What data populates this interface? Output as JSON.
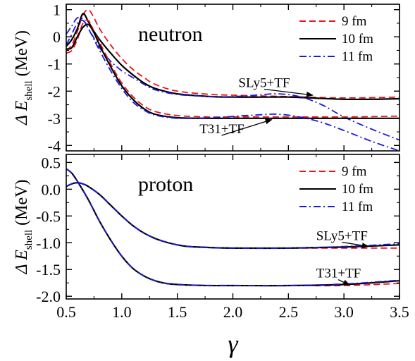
{
  "chart_data": [
    {
      "type": "line",
      "panel_label": "neutron",
      "xlim": [
        0.5,
        3.5
      ],
      "ylim": [
        -4.2,
        1.2
      ],
      "yticks": [
        1,
        0,
        -1,
        -2,
        -3,
        -4
      ],
      "ytick_labels": [
        "1",
        "0",
        "-1",
        "-2",
        "-3",
        "-4"
      ],
      "ylabel": "Δ E",
      "ylabel_sub": "shell",
      "ylabel_unit": "(MeV)",
      "legend": {
        "position": "top-right",
        "entries": [
          {
            "label": "9 fm",
            "color": "#e8141c",
            "dash": "dashed"
          },
          {
            "label": "10 fm",
            "color": "#000000",
            "dash": "solid"
          },
          {
            "label": "11 fm",
            "color": "#1a1adc",
            "dash": "dashdot"
          }
        ]
      },
      "annotations": [
        {
          "text": "SLy5+TF",
          "x": 2.05,
          "y": -1.85,
          "arrow_to_x": 2.72,
          "arrow_to_y": -2.15
        },
        {
          "text": "T31+TF",
          "x": 1.7,
          "y": -3.55,
          "arrow_to_x": 2.35,
          "arrow_to_y": -3.05
        }
      ],
      "series": [
        {
          "name": "9 fm",
          "group": "SLy5+TF",
          "color": "#e8141c",
          "dash": "dashed",
          "x": [
            0.5,
            0.55,
            0.6,
            0.65,
            0.7,
            0.75,
            0.8,
            0.9,
            1.0,
            1.1,
            1.2,
            1.3,
            1.5,
            1.8,
            2.0,
            2.5,
            3.0,
            3.5
          ],
          "y": [
            -0.5,
            -0.3,
            0.2,
            0.8,
            1.0,
            0.7,
            0.3,
            -0.3,
            -0.8,
            -1.2,
            -1.5,
            -1.75,
            -2.0,
            -2.12,
            -2.15,
            -2.2,
            -2.25,
            -2.22
          ]
        },
        {
          "name": "10 fm",
          "group": "SLy5+TF",
          "color": "#000000",
          "dash": "solid",
          "x": [
            0.5,
            0.55,
            0.6,
            0.65,
            0.7,
            0.75,
            0.8,
            0.9,
            1.0,
            1.1,
            1.2,
            1.3,
            1.5,
            1.8,
            2.0,
            2.3,
            2.5,
            2.7,
            3.0,
            3.25,
            3.5
          ],
          "y": [
            -0.35,
            -0.1,
            0.3,
            0.85,
            0.55,
            0.2,
            -0.1,
            -0.6,
            -1.05,
            -1.4,
            -1.7,
            -1.9,
            -2.1,
            -2.2,
            -2.22,
            -2.22,
            -2.22,
            -2.25,
            -2.3,
            -2.3,
            -2.28
          ]
        },
        {
          "name": "11 fm",
          "group": "SLy5+TF",
          "color": "#1a1adc",
          "dash": "dashdot",
          "x": [
            0.5,
            0.55,
            0.6,
            0.65,
            0.7,
            0.75,
            0.8,
            0.9,
            1.0,
            1.1,
            1.2,
            1.3,
            1.5,
            1.8,
            2.0,
            2.2,
            2.4,
            2.6,
            2.8,
            3.0,
            3.25,
            3.5
          ],
          "y": [
            0.1,
            0.4,
            0.7,
            0.65,
            0.3,
            -0.05,
            -0.4,
            -0.9,
            -1.25,
            -1.5,
            -1.75,
            -1.95,
            -2.12,
            -2.2,
            -2.2,
            -2.15,
            -2.1,
            -2.2,
            -2.5,
            -2.95,
            -3.4,
            -3.8
          ]
        },
        {
          "name": "9 fm",
          "group": "T31+TF",
          "color": "#e8141c",
          "dash": "dashed",
          "x": [
            0.5,
            0.55,
            0.6,
            0.65,
            0.7,
            0.75,
            0.8,
            0.9,
            1.0,
            1.1,
            1.2,
            1.3,
            1.5,
            1.8,
            2.0,
            2.5,
            3.0,
            3.5
          ],
          "y": [
            -0.6,
            -0.5,
            -0.1,
            0.5,
            0.6,
            0.2,
            -0.2,
            -1.0,
            -1.7,
            -2.2,
            -2.55,
            -2.75,
            -2.9,
            -2.95,
            -2.95,
            -2.95,
            -2.95,
            -2.92
          ]
        },
        {
          "name": "10 fm",
          "group": "T31+TF",
          "color": "#000000",
          "dash": "solid",
          "x": [
            0.5,
            0.55,
            0.6,
            0.65,
            0.7,
            0.75,
            0.8,
            0.9,
            1.0,
            1.1,
            1.2,
            1.3,
            1.5,
            1.8,
            2.0,
            2.5,
            3.0,
            3.5
          ],
          "y": [
            -0.45,
            -0.4,
            0.0,
            0.35,
            0.45,
            0.15,
            -0.3,
            -1.1,
            -1.8,
            -2.3,
            -2.65,
            -2.85,
            -2.98,
            -3.0,
            -3.0,
            -3.0,
            -3.0,
            -3.0
          ]
        },
        {
          "name": "11 fm",
          "group": "T31+TF",
          "color": "#1a1adc",
          "dash": "dashdot",
          "x": [
            0.5,
            0.55,
            0.6,
            0.65,
            0.7,
            0.75,
            0.8,
            0.9,
            1.0,
            1.1,
            1.2,
            1.3,
            1.5,
            1.8,
            2.0,
            2.2,
            2.4,
            2.6,
            2.8,
            3.0,
            3.25,
            3.5
          ],
          "y": [
            -0.3,
            0.1,
            0.5,
            0.6,
            0.3,
            -0.1,
            -0.5,
            -1.25,
            -1.9,
            -2.4,
            -2.7,
            -2.88,
            -3.0,
            -2.98,
            -2.93,
            -2.88,
            -2.85,
            -2.95,
            -3.15,
            -3.45,
            -3.85,
            -4.2
          ]
        }
      ]
    },
    {
      "type": "line",
      "panel_label": "proton",
      "xlim": [
        0.5,
        3.5
      ],
      "ylim": [
        -2.05,
        0.65
      ],
      "xticks": [
        0.5,
        1.0,
        1.5,
        2.0,
        2.5,
        3.0,
        3.5
      ],
      "xtick_labels": [
        "0.5",
        "1.0",
        "1.5",
        "2.0",
        "2.5",
        "3.0",
        "3.5"
      ],
      "yticks": [
        0.5,
        0.0,
        -0.5,
        -1.0,
        -1.5,
        -2.0
      ],
      "ytick_labels": [
        "0.5",
        "0.0",
        "-0.5",
        "-1.0",
        "-1.5",
        "-2.0"
      ],
      "xlabel": "γ",
      "ylabel": "Δ E",
      "ylabel_sub": "shell",
      "ylabel_unit": "(MeV)",
      "legend": {
        "position": "top-right",
        "entries": [
          {
            "label": "9 fm",
            "color": "#e8141c",
            "dash": "dashed"
          },
          {
            "label": "10 fm",
            "color": "#000000",
            "dash": "solid"
          },
          {
            "label": "11 fm",
            "color": "#1a1adc",
            "dash": "dashdot"
          }
        ]
      },
      "annotations": [
        {
          "text": "SLy5+TF",
          "x": 2.75,
          "y": -0.95,
          "arrow_to_x": 3.22,
          "arrow_to_y": -1.07
        },
        {
          "text": "T31+TF",
          "x": 2.75,
          "y": -1.65,
          "arrow_to_x": 3.05,
          "arrow_to_y": -1.79
        }
      ],
      "series": [
        {
          "name": "9 fm",
          "group": "SLy5+TF",
          "color": "#e8141c",
          "dash": "dashed",
          "x": [
            0.5,
            0.55,
            0.6,
            0.65,
            0.7,
            0.8,
            0.9,
            1.0,
            1.1,
            1.2,
            1.3,
            1.4,
            1.5,
            1.6,
            1.8,
            2.0,
            2.5,
            3.0,
            3.5
          ],
          "y": [
            0.05,
            0.1,
            0.12,
            0.1,
            0.05,
            -0.1,
            -0.3,
            -0.5,
            -0.68,
            -0.82,
            -0.92,
            -0.99,
            -1.04,
            -1.07,
            -1.09,
            -1.1,
            -1.1,
            -1.1,
            -1.1
          ]
        },
        {
          "name": "10 fm",
          "group": "SLy5+TF",
          "color": "#000000",
          "dash": "solid",
          "x": [
            0.5,
            0.55,
            0.6,
            0.65,
            0.7,
            0.8,
            0.9,
            1.0,
            1.1,
            1.2,
            1.3,
            1.4,
            1.5,
            1.6,
            1.8,
            2.0,
            2.5,
            3.0,
            3.5
          ],
          "y": [
            0.05,
            0.1,
            0.12,
            0.1,
            0.05,
            -0.1,
            -0.3,
            -0.5,
            -0.68,
            -0.82,
            -0.92,
            -0.99,
            -1.04,
            -1.07,
            -1.09,
            -1.1,
            -1.1,
            -1.08,
            -1.04
          ]
        },
        {
          "name": "11 fm",
          "group": "SLy5+TF",
          "color": "#1a1adc",
          "dash": "dashdot",
          "x": [
            0.5,
            0.55,
            0.6,
            0.65,
            0.7,
            0.8,
            0.9,
            1.0,
            1.1,
            1.2,
            1.3,
            1.4,
            1.5,
            1.6,
            1.8,
            2.0,
            2.5,
            3.0,
            3.5
          ],
          "y": [
            0.05,
            0.1,
            0.12,
            0.1,
            0.05,
            -0.1,
            -0.3,
            -0.5,
            -0.68,
            -0.82,
            -0.92,
            -0.99,
            -1.04,
            -1.07,
            -1.09,
            -1.1,
            -1.1,
            -1.07,
            -1.02
          ]
        },
        {
          "name": "9 fm",
          "group": "T31+TF",
          "color": "#e8141c",
          "dash": "dashed",
          "x": [
            0.5,
            0.55,
            0.6,
            0.7,
            0.8,
            0.9,
            1.0,
            1.1,
            1.2,
            1.3,
            1.4,
            1.5,
            1.6,
            1.8,
            2.0,
            2.5,
            3.0,
            3.5
          ],
          "y": [
            0.38,
            0.3,
            0.15,
            -0.2,
            -0.6,
            -0.95,
            -1.25,
            -1.48,
            -1.62,
            -1.71,
            -1.76,
            -1.78,
            -1.79,
            -1.8,
            -1.8,
            -1.8,
            -1.8,
            -1.76
          ]
        },
        {
          "name": "10 fm",
          "group": "T31+TF",
          "color": "#000000",
          "dash": "solid",
          "x": [
            0.5,
            0.55,
            0.6,
            0.7,
            0.8,
            0.9,
            1.0,
            1.1,
            1.2,
            1.3,
            1.4,
            1.5,
            1.6,
            1.8,
            2.0,
            2.5,
            3.0,
            3.5
          ],
          "y": [
            0.38,
            0.3,
            0.15,
            -0.2,
            -0.6,
            -0.95,
            -1.25,
            -1.48,
            -1.62,
            -1.71,
            -1.76,
            -1.78,
            -1.79,
            -1.8,
            -1.8,
            -1.8,
            -1.78,
            -1.71
          ]
        },
        {
          "name": "11 fm",
          "group": "T31+TF",
          "color": "#1a1adc",
          "dash": "dashdot",
          "x": [
            0.5,
            0.55,
            0.6,
            0.7,
            0.8,
            0.9,
            1.0,
            1.1,
            1.2,
            1.3,
            1.4,
            1.5,
            1.6,
            1.8,
            2.0,
            2.5,
            3.0,
            3.5
          ],
          "y": [
            0.38,
            0.3,
            0.15,
            -0.2,
            -0.6,
            -0.95,
            -1.25,
            -1.48,
            -1.62,
            -1.71,
            -1.76,
            -1.78,
            -1.79,
            -1.8,
            -1.8,
            -1.8,
            -1.77,
            -1.7
          ]
        }
      ]
    }
  ]
}
